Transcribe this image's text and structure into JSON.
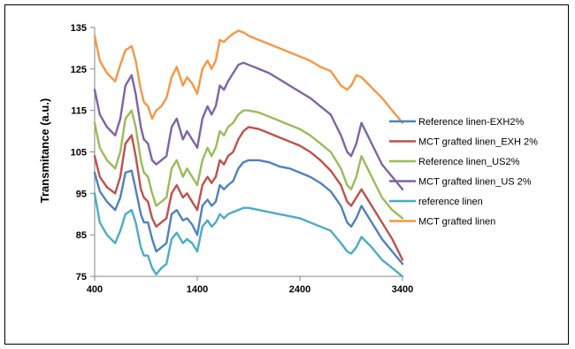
{
  "chart_data": {
    "type": "line",
    "title": "",
    "xlabel": "",
    "ylabel": "Transmitance  (a.u.)",
    "xlim": [
      400,
      3400
    ],
    "ylim": [
      75,
      135
    ],
    "xticks": [
      400,
      1400,
      2400,
      3400
    ],
    "yticks": [
      75,
      85,
      95,
      105,
      115,
      125,
      135
    ],
    "grid": false,
    "legend_position": "right",
    "x": [
      400,
      450,
      520,
      600,
      650,
      700,
      760,
      800,
      850,
      880,
      920,
      960,
      1000,
      1050,
      1100,
      1150,
      1200,
      1260,
      1300,
      1350,
      1400,
      1450,
      1500,
      1540,
      1580,
      1620,
      1660,
      1700,
      1750,
      1800,
      1850,
      1900,
      2000,
      2100,
      2200,
      2300,
      2400,
      2500,
      2600,
      2700,
      2800,
      2860,
      2900,
      2950,
      3000,
      3100,
      3200,
      3300,
      3400
    ],
    "series": [
      {
        "name": "Reference linen-EXH2%",
        "color": "#4f81bd",
        "values": [
          100,
          95.5,
          93,
          91,
          94,
          100,
          100.5,
          96,
          90,
          88,
          88,
          84,
          81,
          82,
          83,
          90,
          91,
          88.5,
          89,
          87.5,
          85,
          92,
          93.5,
          92,
          93,
          97,
          96,
          97,
          98,
          101,
          102.5,
          103,
          103,
          102.5,
          101.5,
          101,
          100,
          99,
          97.5,
          95.5,
          92,
          88,
          87,
          89,
          92,
          88,
          84,
          81,
          78
        ]
      },
      {
        "name": "MCT grafted linen_EXH 2%",
        "color": "#c0504d",
        "values": [
          104,
          99,
          96.5,
          95,
          99,
          107,
          109,
          104,
          96,
          94,
          93,
          89,
          87,
          88,
          89,
          95,
          97,
          94,
          95,
          93,
          91,
          97,
          99,
          97.5,
          99,
          103,
          102,
          104,
          105,
          108,
          110,
          111,
          110.5,
          109.5,
          108.5,
          107.5,
          106.5,
          105,
          103,
          100.5,
          97,
          93,
          92,
          94,
          96,
          92,
          88,
          84,
          79
        ]
      },
      {
        "name": "Reference linen_US2%",
        "color": "#9bbb59",
        "values": [
          112,
          106,
          103,
          101,
          105,
          113,
          115,
          111,
          103,
          100,
          99,
          95,
          92,
          93,
          94,
          101,
          103,
          99,
          101,
          99,
          97,
          103,
          106,
          104,
          106,
          110,
          109,
          111,
          112,
          114,
          115,
          115,
          114.5,
          113.5,
          112.5,
          111.5,
          110.5,
          109,
          107,
          105,
          101,
          97,
          96,
          99,
          104,
          99,
          94,
          91,
          89
        ]
      },
      {
        "name": "MCT grafted linen_US 2%",
        "color": "#8064a2",
        "values": [
          120,
          114,
          111,
          109,
          113,
          121,
          123.5,
          119,
          111,
          108,
          107,
          103,
          102,
          103,
          104,
          111,
          113,
          108,
          110,
          108,
          106,
          113,
          116,
          114,
          116,
          121,
          120,
          122,
          124,
          126,
          126.5,
          126,
          125,
          124,
          122.5,
          121,
          119.5,
          118,
          116,
          114,
          109,
          105,
          104,
          107,
          112,
          107,
          102,
          99,
          96
        ]
      },
      {
        "name": "reference linen",
        "color": "#4bacc6",
        "values": [
          95,
          88,
          85,
          83,
          86,
          90,
          91,
          88,
          82,
          80,
          80,
          77,
          75.5,
          77,
          78,
          84,
          85.5,
          83,
          84,
          83,
          81,
          87,
          88.5,
          87,
          88,
          90,
          89,
          90,
          90.5,
          91,
          91.5,
          91.5,
          91,
          90.5,
          90,
          89.5,
          89,
          88,
          87,
          86,
          83,
          81,
          80.5,
          82,
          84.5,
          82,
          79,
          77,
          75
        ]
      },
      {
        "name": "MCT grafted linen",
        "color": "#f79646",
        "values": [
          133,
          127,
          124,
          122,
          126,
          129.5,
          130.5,
          127,
          120,
          117,
          116,
          113,
          115,
          116,
          118,
          123,
          125.5,
          121,
          123,
          121.5,
          119,
          125,
          127,
          125,
          127,
          132,
          131.5,
          132.5,
          133.5,
          134.2,
          133.8,
          133,
          132,
          131,
          130,
          129,
          128,
          127,
          125.5,
          124.5,
          121,
          120,
          121,
          123.5,
          123,
          120.5,
          118,
          115,
          112
        ]
      }
    ]
  }
}
